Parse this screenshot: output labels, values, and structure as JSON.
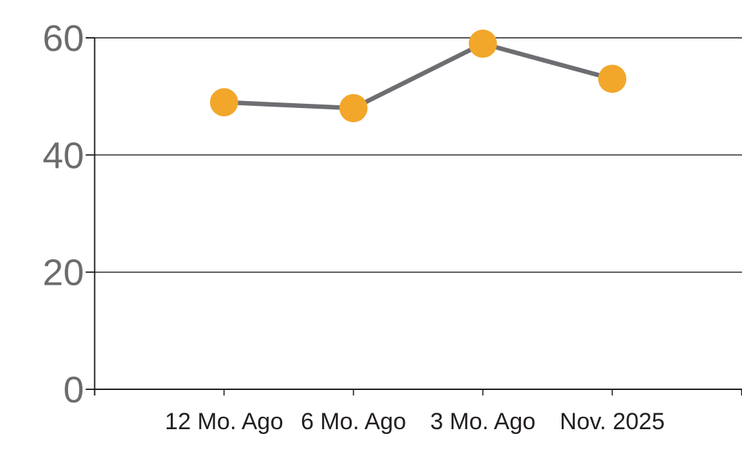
{
  "chart_data": {
    "type": "line",
    "categories": [
      "12 Mo. Ago",
      "6 Mo. Ago",
      "3 Mo. Ago",
      "Nov. 2025"
    ],
    "series": [
      {
        "name": "series-1",
        "values": [
          49,
          48,
          59,
          53
        ]
      }
    ],
    "title": "",
    "xlabel": "",
    "ylabel": "",
    "ylim": [
      0,
      60
    ],
    "yticks": [
      0,
      20,
      40,
      60
    ],
    "grid": true,
    "legend_position": "none",
    "colors": {
      "marker": "#F2A72B",
      "line": "#6D6E71",
      "axis": "#1A1A1A",
      "ytick_label": "#6B6C6E",
      "xtick_label": "#231F20",
      "background": "#FFFFFF"
    }
  }
}
